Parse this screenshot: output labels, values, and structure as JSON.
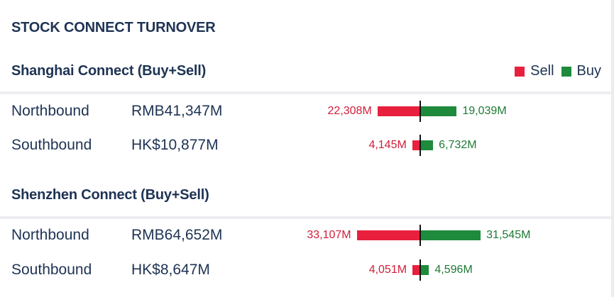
{
  "title": "STOCK CONNECT TURNOVER",
  "legend": {
    "sell_label": "Sell",
    "buy_label": "Buy",
    "sell_color": "#e8203d",
    "buy_color": "#1e8a3c"
  },
  "sections": [
    {
      "heading": "Shanghai Connect (Buy+Sell)",
      "rows": [
        {
          "direction": "Northbound",
          "total": "RMB41,347M",
          "sell": 22308,
          "sell_label": "22,308M",
          "buy": 19039,
          "buy_label": "19,039M"
        },
        {
          "direction": "Southbound",
          "total": "HK$10,877M",
          "sell": 4145,
          "sell_label": "4,145M",
          "buy": 6732,
          "buy_label": "6,732M"
        }
      ]
    },
    {
      "heading": "Shenzhen Connect (Buy+Sell)",
      "rows": [
        {
          "direction": "Northbound",
          "total": "RMB64,652M",
          "sell": 33107,
          "sell_label": "33,107M",
          "buy": 31545,
          "buy_label": "31,545M"
        },
        {
          "direction": "Southbound",
          "total": "HK$8,647M",
          "sell": 4051,
          "sell_label": "4,051M",
          "buy": 4596,
          "buy_label": "4,596M"
        }
      ]
    }
  ]
}
